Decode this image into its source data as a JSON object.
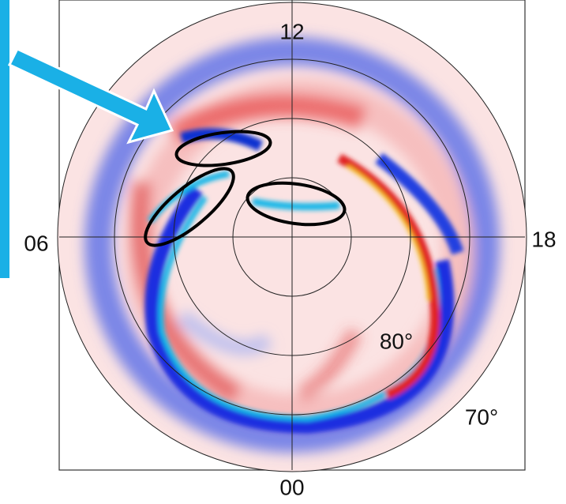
{
  "labels": {
    "top": "12",
    "left": "06",
    "right": "18",
    "bottom": "00",
    "inner_latitude": "80°",
    "outer_latitude": "70°"
  }
}
